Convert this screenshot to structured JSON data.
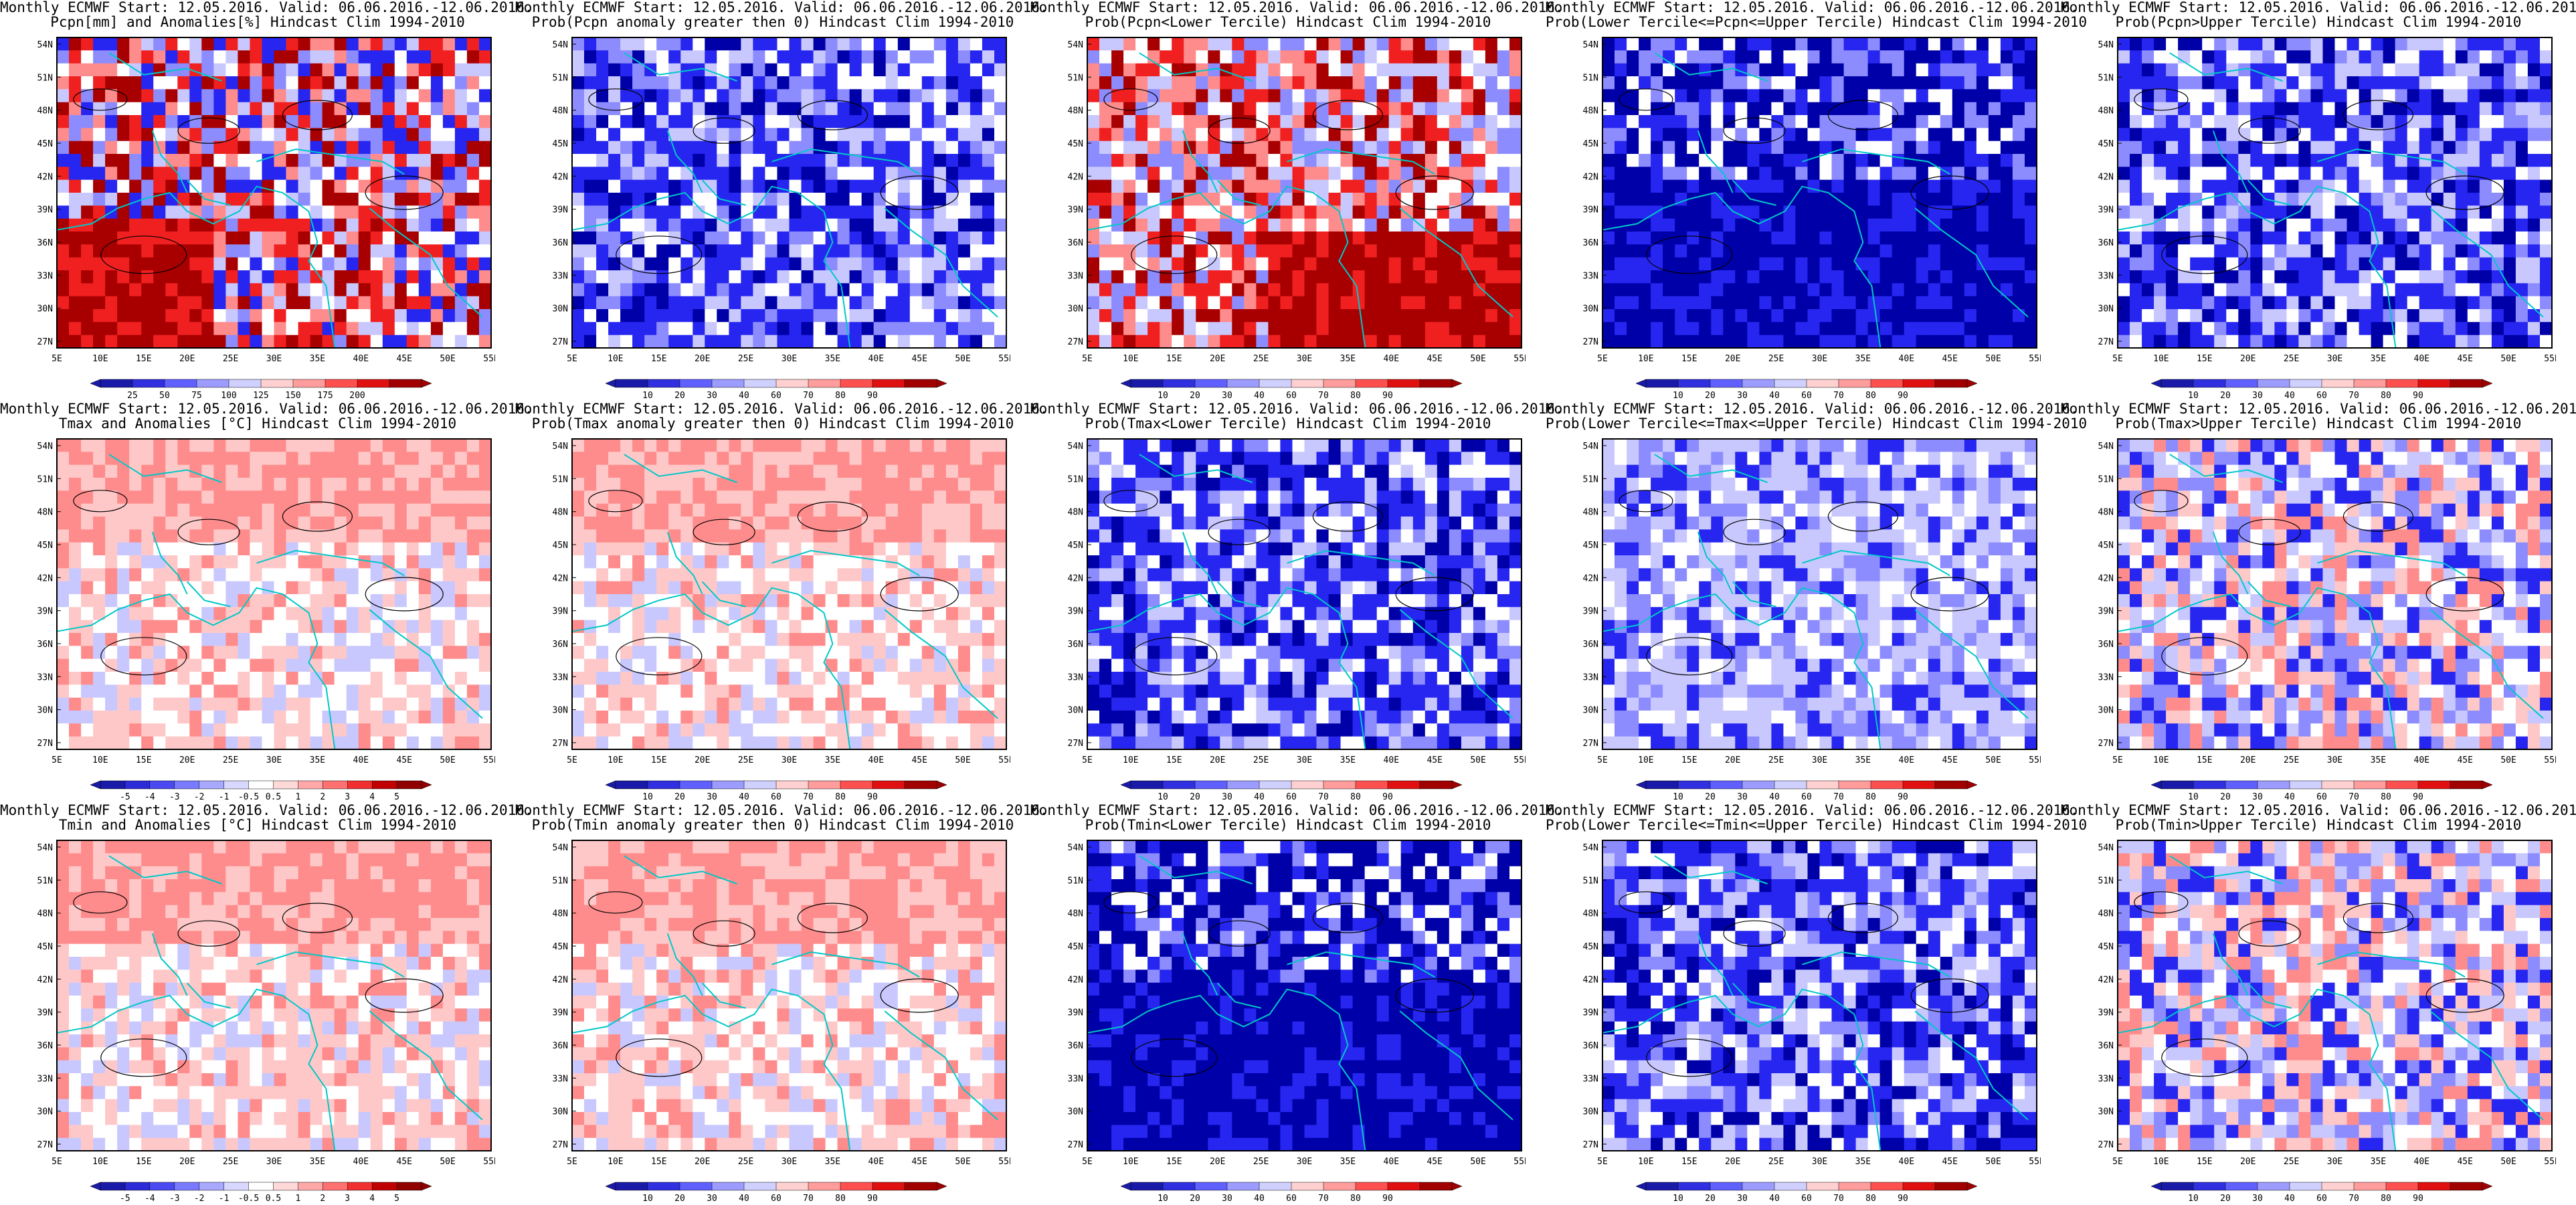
{
  "map": {
    "lon_labels": [
      "5E",
      "10E",
      "15E",
      "20E",
      "25E",
      "30E",
      "35E",
      "40E",
      "45E",
      "50E",
      "55E"
    ],
    "lat_labels": [
      "27N",
      "30N",
      "33N",
      "36N",
      "39N",
      "42N",
      "45N",
      "48N",
      "51N",
      "54N"
    ]
  },
  "panels": [
    {
      "title1": "Monthly ECMWF Start: 12.05.2016. Valid: 06.06.2016.-12.06.2016.",
      "title2": "Pcpn[mm] and Anomalies[%] Hindcast Clim 1994-2010",
      "cbar": [
        "25",
        "50",
        "75",
        "100",
        "125",
        "150",
        "175",
        "200"
      ],
      "field": "precip-anomaly"
    },
    {
      "title1": "Monthly ECMWF Start: 12.05.2016. Valid: 06.06.2016.-12.06.2016.",
      "title2": "Prob(Pcpn anomaly greater then 0) Hindcast Clim 1994-2010",
      "cbar": [
        "10",
        "20",
        "30",
        "40",
        "60",
        "70",
        "80",
        "90"
      ],
      "field": "mostly-blue"
    },
    {
      "title1": "Monthly ECMWF Start: 12.05.2016. Valid: 06.06.2016.-12.06.2016.",
      "title2": "Prob(Pcpn<Lower Tercile) Hindcast Clim 1994-2010",
      "cbar": [
        "10",
        "20",
        "30",
        "40",
        "60",
        "70",
        "80",
        "90"
      ],
      "field": "red-south"
    },
    {
      "title1": "Monthly ECMWF Start: 12.05.2016. Valid: 06.06.2016.-12.06.2016.",
      "title2": "Prob(Lower Tercile<=Pcpn<=Upper Tercile) Hindcast Clim 1994-2010",
      "cbar": [
        "10",
        "20",
        "30",
        "40",
        "60",
        "70",
        "80",
        "90"
      ],
      "field": "deep-blue"
    },
    {
      "title1": "Monthly ECMWF Start: 12.05.2016. Valid: 06.06.2016.-12.06.2016.",
      "title2": "Prob(Pcpn>Upper Tercile) Hindcast Clim 1994-2010",
      "cbar": [
        "10",
        "20",
        "30",
        "40",
        "60",
        "70",
        "80",
        "90"
      ],
      "field": "mostly-blue"
    },
    {
      "title1": "Monthly ECMWF Start: 12.05.2016. Valid: 06.06.2016.-12.06.2016.",
      "title2": "Tmax and Anomalies [°C] Hindcast Clim 1994-2010",
      "cbar": [
        "-5",
        "-4",
        "-3",
        "-2",
        "-1",
        "-0.5",
        "0.5",
        "1",
        "2",
        "3",
        "4",
        "5"
      ],
      "field": "warm-north"
    },
    {
      "title1": "Monthly ECMWF Start: 12.05.2016. Valid: 06.06.2016.-12.06.2016.",
      "title2": "Prob(Tmax anomaly greater then 0) Hindcast Clim 1994-2010",
      "cbar": [
        "10",
        "20",
        "30",
        "40",
        "60",
        "70",
        "80",
        "90"
      ],
      "field": "warm-north"
    },
    {
      "title1": "Monthly ECMWF Start: 12.05.2016. Valid: 06.06.2016.-12.06.2016.",
      "title2": "Prob(Tmax<Lower Tercile) Hindcast Clim 1994-2010",
      "cbar": [
        "10",
        "20",
        "30",
        "40",
        "60",
        "70",
        "80",
        "90"
      ],
      "field": "mostly-blue"
    },
    {
      "title1": "Monthly ECMWF Start: 12.05.2016. Valid: 06.06.2016.-12.06.2016.",
      "title2": "Prob(Lower Tercile<=Tmax<=Upper Tercile) Hindcast Clim 1994-2010",
      "cbar": [
        "10",
        "20",
        "30",
        "40",
        "60",
        "70",
        "80",
        "90"
      ],
      "field": "light-blue"
    },
    {
      "title1": "Monthly ECMWF Start: 12.05.2016. Valid: 06.06.2016.-12.06.2016.",
      "title2": "Prob(Tmax>Upper Tercile) Hindcast Clim 1994-2010",
      "cbar": [
        "10",
        "20",
        "30",
        "40",
        "60",
        "70",
        "80",
        "90"
      ],
      "field": "mixed"
    },
    {
      "title1": "Monthly ECMWF Start: 12.05.2016. Valid: 06.06.2016.-12.06.2016.",
      "title2": "Tmin and Anomalies [°C] Hindcast Clim 1994-2010",
      "cbar": [
        "-5",
        "-4",
        "-3",
        "-2",
        "-1",
        "-0.5",
        "0.5",
        "1",
        "2",
        "3",
        "4",
        "5"
      ],
      "field": "warm-north"
    },
    {
      "title1": "Monthly ECMWF Start: 12.05.2016. Valid: 06.06.2016.-12.06.2016.",
      "title2": "Prob(Tmin anomaly greater then 0) Hindcast Clim 1994-2010",
      "cbar": [
        "10",
        "20",
        "30",
        "40",
        "60",
        "70",
        "80",
        "90"
      ],
      "field": "warm-north"
    },
    {
      "title1": "Monthly ECMWF Start: 12.05.2016. Valid: 06.06.2016.-12.06.2016.",
      "title2": "Prob(Tmin<Lower Tercile) Hindcast Clim 1994-2010",
      "cbar": [
        "10",
        "20",
        "30",
        "40",
        "60",
        "70",
        "80",
        "90"
      ],
      "field": "deep-blue"
    },
    {
      "title1": "Monthly ECMWF Start: 12.05.2016. Valid: 06.06.2016.-12.06.2016.",
      "title2": "Prob(Lower Tercile<=Tmin<=Upper Tercile) Hindcast Clim 1994-2010",
      "cbar": [
        "10",
        "20",
        "30",
        "40",
        "60",
        "70",
        "80",
        "90"
      ],
      "field": "mostly-blue"
    },
    {
      "title1": "Monthly ECMWF Start: 12.05.2016. Valid: 06.06.2016.-12.06.2016.",
      "title2": "Prob(Tmin>Upper Tercile) Hindcast Clim 1994-2010",
      "cbar": [
        "10",
        "20",
        "30",
        "40",
        "60",
        "70",
        "80",
        "90"
      ],
      "field": "mixed"
    }
  ],
  "colors": {
    "blue_dark": "#0000a8",
    "blue_mid": "#2626f0",
    "blue_light": "#8c8cff",
    "blue_pale": "#c8c8ff",
    "red_pale": "#ffc8c8",
    "red_light": "#ff8c8c",
    "red_mid": "#f02020",
    "red_dark": "#a80000",
    "coast": "#00c8c8",
    "contour": "#000000"
  }
}
